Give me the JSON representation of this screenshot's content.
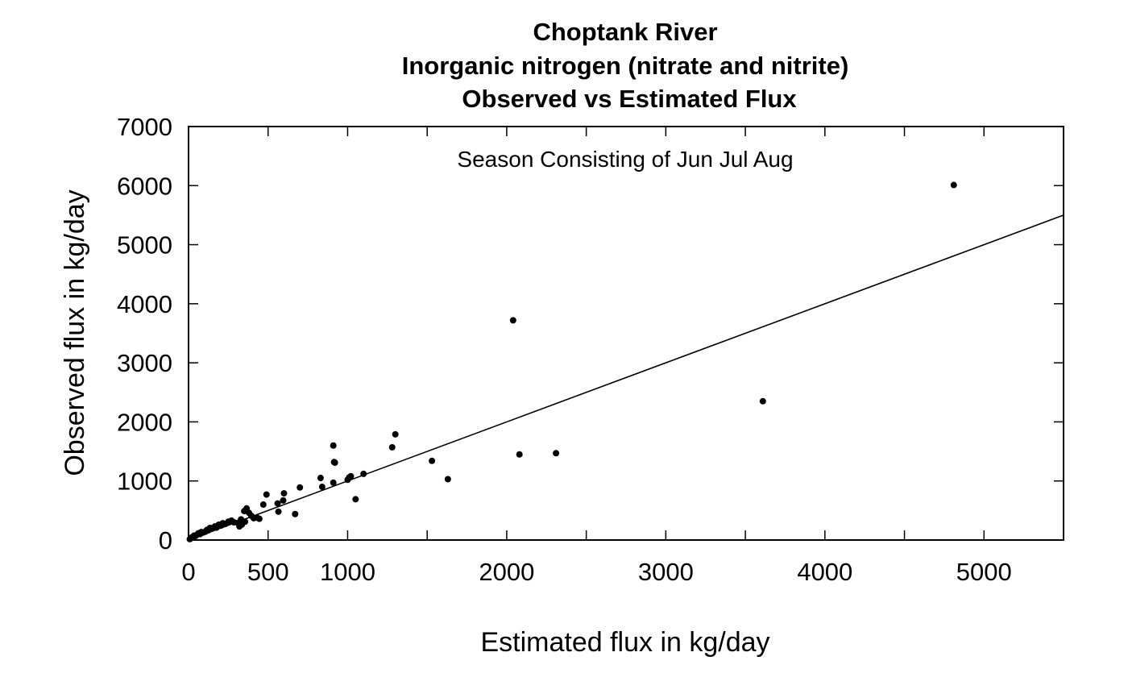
{
  "chart_data": {
    "type": "scatter",
    "title": [
      "Choptank River",
      "Inorganic nitrogen (nitrate and nitrite)",
      "Observed vs Estimated Flux"
    ],
    "annotation": "Season Consisting of Jun Jul Aug",
    "xlabel": "Estimated flux in kg/day",
    "ylabel": "Observed flux in kg/day",
    "xlim": [
      0,
      5500
    ],
    "ylim": [
      0,
      7000
    ],
    "x_ticks": [
      0,
      500,
      1000,
      2000,
      3000,
      4000,
      5000
    ],
    "x_tick_marks": [
      0,
      500,
      1000,
      1500,
      2000,
      2500,
      3000,
      3500,
      4000,
      4500,
      5000,
      5500
    ],
    "y_ticks": [
      0,
      1000,
      2000,
      3000,
      4000,
      5000,
      6000,
      7000
    ],
    "reference_line": {
      "x": [
        0,
        5500
      ],
      "y": [
        0,
        5500
      ]
    },
    "grid": false,
    "points": [
      [
        8,
        15
      ],
      [
        14,
        30
      ],
      [
        20,
        45
      ],
      [
        28,
        55
      ],
      [
        35,
        75
      ],
      [
        45,
        70
      ],
      [
        55,
        95
      ],
      [
        62,
        115
      ],
      [
        72,
        100
      ],
      [
        80,
        135
      ],
      [
        90,
        125
      ],
      [
        105,
        140
      ],
      [
        115,
        170
      ],
      [
        125,
        165
      ],
      [
        135,
        205
      ],
      [
        150,
        195
      ],
      [
        165,
        230
      ],
      [
        175,
        210
      ],
      [
        190,
        260
      ],
      [
        205,
        245
      ],
      [
        215,
        285
      ],
      [
        230,
        270
      ],
      [
        250,
        310
      ],
      [
        270,
        330
      ],
      [
        285,
        300
      ],
      [
        310,
        290
      ],
      [
        330,
        350
      ],
      [
        320,
        230
      ],
      [
        335,
        260
      ],
      [
        350,
        490
      ],
      [
        355,
        310
      ],
      [
        365,
        535
      ],
      [
        380,
        460
      ],
      [
        395,
        410
      ],
      [
        410,
        370
      ],
      [
        430,
        380
      ],
      [
        445,
        360
      ],
      [
        470,
        600
      ],
      [
        490,
        770
      ],
      [
        560,
        620
      ],
      [
        565,
        480
      ],
      [
        595,
        670
      ],
      [
        600,
        790
      ],
      [
        670,
        440
      ],
      [
        700,
        890
      ],
      [
        830,
        1050
      ],
      [
        840,
        900
      ],
      [
        910,
        970
      ],
      [
        910,
        1600
      ],
      [
        915,
        1320
      ],
      [
        920,
        1310
      ],
      [
        1000,
        1020
      ],
      [
        1010,
        1060
      ],
      [
        1020,
        1080
      ],
      [
        1050,
        690
      ],
      [
        1100,
        1120
      ],
      [
        1280,
        1570
      ],
      [
        1300,
        1790
      ],
      [
        1530,
        1340
      ],
      [
        1630,
        1030
      ],
      [
        2040,
        3720
      ],
      [
        2080,
        1450
      ],
      [
        2310,
        1470
      ],
      [
        3610,
        2350
      ],
      [
        4810,
        6010
      ]
    ]
  }
}
